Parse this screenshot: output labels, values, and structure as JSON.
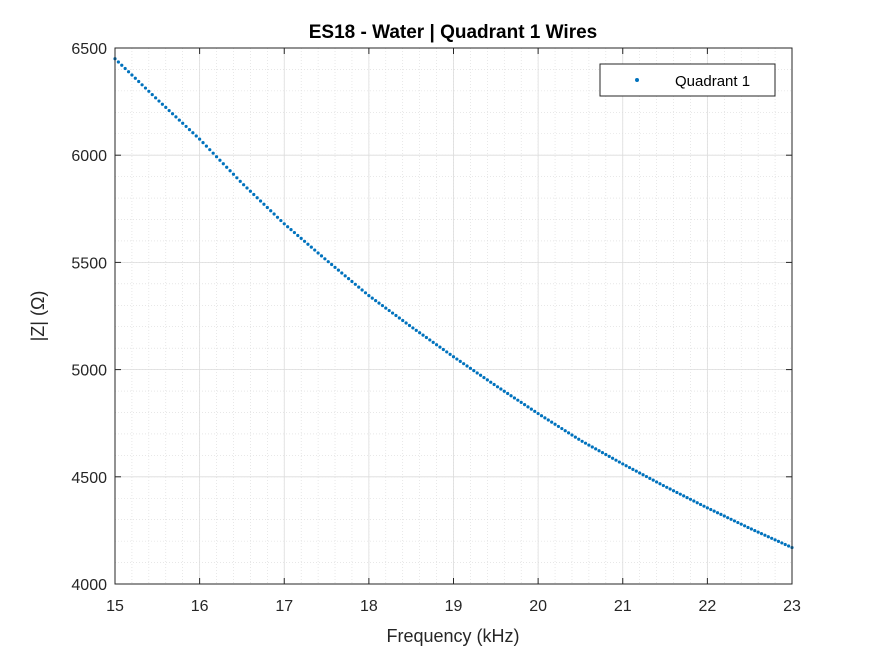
{
  "chart_data": {
    "type": "scatter",
    "title": "ES18 - Water | Quadrant 1 Wires",
    "xlabel": "Frequency (kHz)",
    "ylabel": "|Z| (Ω)",
    "xlim": [
      15,
      23
    ],
    "ylim": [
      4000,
      6500
    ],
    "xticks": [
      15,
      16,
      17,
      18,
      19,
      20,
      21,
      22,
      23
    ],
    "yticks": [
      4000,
      4500,
      5000,
      5500,
      6000,
      6500
    ],
    "grid": true,
    "minor_grid": true,
    "legend_position": "top-right",
    "marker_color": "#0072BD",
    "series": [
      {
        "name": "Quadrant 1",
        "x": [
          15,
          15.5,
          16,
          16.5,
          17,
          17.5,
          18,
          18.5,
          19,
          19.5,
          20,
          20.5,
          21,
          21.5,
          22,
          22.5,
          23
        ],
        "y": [
          6450,
          6260,
          6075,
          5870,
          5680,
          5510,
          5345,
          5200,
          5060,
          4925,
          4795,
          4670,
          4560,
          4455,
          4355,
          4260,
          4170
        ]
      }
    ]
  }
}
